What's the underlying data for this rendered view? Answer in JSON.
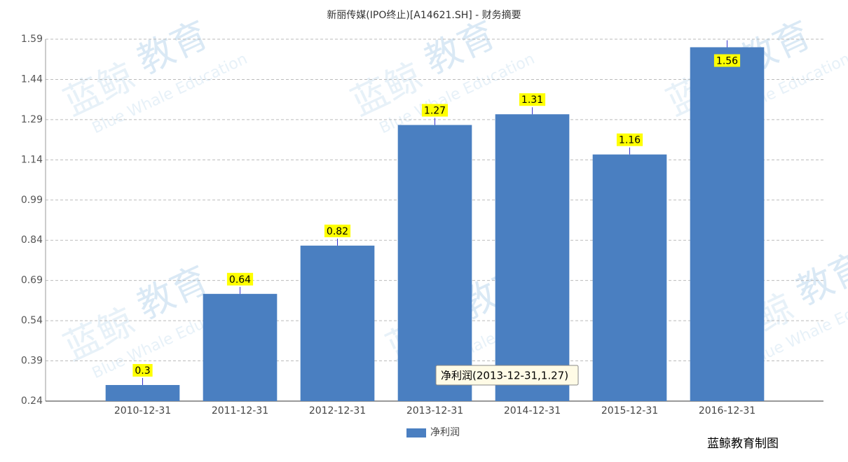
{
  "chart_data": {
    "type": "bar",
    "title": "新丽传媒(IPO终止)[A14621.SH] - 财务摘要",
    "categories": [
      "2010-12-31",
      "2011-12-31",
      "2012-12-31",
      "2013-12-31",
      "2014-12-31",
      "2015-12-31",
      "2016-12-31"
    ],
    "series": [
      {
        "name": "净利润",
        "color": "#4a7fc1",
        "values": [
          0.3,
          0.64,
          0.82,
          1.27,
          1.31,
          1.16,
          1.56
        ]
      }
    ],
    "ylim": [
      0.24,
      1.59
    ],
    "yticks": [
      0.24,
      0.39,
      0.54,
      0.69,
      0.84,
      0.99,
      1.14,
      1.29,
      1.44,
      1.59
    ],
    "grid": true,
    "legend": "bottom",
    "tooltip": "净利润(2013-12-31,1.27)",
    "source": "蓝鲸教育制图",
    "watermark": {
      "brand": "蓝鲸",
      "badge": "教育",
      "english": "Blue Whale Education"
    }
  }
}
